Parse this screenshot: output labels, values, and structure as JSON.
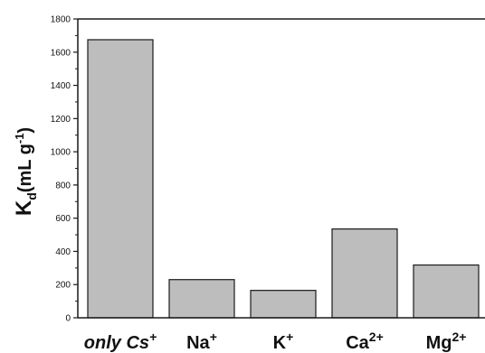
{
  "chart_data": {
    "type": "bar",
    "categories": [
      {
        "base": "only Cs",
        "sup": "+",
        "italic": true
      },
      {
        "base": "Na",
        "sup": "+",
        "italic": false
      },
      {
        "base": "K",
        "sup": "+",
        "italic": false
      },
      {
        "base": "Ca",
        "sup": "2+",
        "italic": false
      },
      {
        "base": "Mg",
        "sup": "2+",
        "italic": false
      }
    ],
    "values": [
      1675,
      230,
      165,
      535,
      318
    ],
    "ylabel": {
      "main": "K",
      "sub": "d",
      "units": "(mL g",
      "units_sup": "-1",
      "units_close": ")"
    },
    "ylim": [
      0,
      1800
    ],
    "yticks": [
      0,
      200,
      400,
      600,
      800,
      1000,
      1200,
      1400,
      1600,
      1800
    ],
    "ytick_labels": [
      "0",
      "200",
      "400",
      "600",
      "800",
      "1000",
      "1200",
      "1400",
      "1600",
      "1800"
    ],
    "grid": false,
    "colors": {
      "bar_fill": "#bdbdbd",
      "bar_stroke": "#1a1a1a",
      "axis": "#1a1a1a"
    }
  }
}
